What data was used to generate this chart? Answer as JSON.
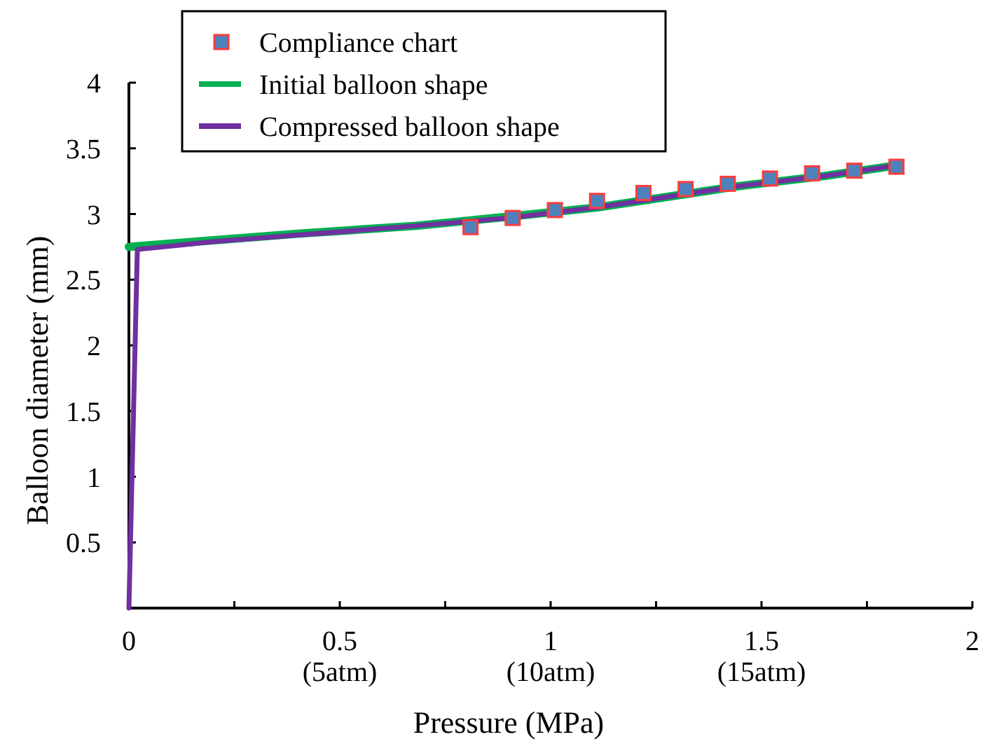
{
  "chart_data": {
    "type": "line",
    "xlabel": "Pressure (MPa)",
    "ylabel": "Balloon diameter (mm)",
    "xlim": [
      0,
      2
    ],
    "ylim": [
      0,
      4
    ],
    "xticks": [
      {
        "value": 0,
        "label": "0"
      },
      {
        "value": 0.25,
        "label": null
      },
      {
        "value": 0.5,
        "label": "0.5\n(5atm)"
      },
      {
        "value": 0.75,
        "label": null
      },
      {
        "value": 1,
        "label": "1\n(10atm)"
      },
      {
        "value": 1.25,
        "label": null
      },
      {
        "value": 1.5,
        "label": "1.5\n(15atm)"
      },
      {
        "value": 1.75,
        "label": null
      },
      {
        "value": 2,
        "label": "2"
      }
    ],
    "yticks": [
      0.5,
      1,
      1.5,
      2,
      2.5,
      3,
      3.5,
      4
    ],
    "grid": false,
    "legend": "top left",
    "series": [
      {
        "name": "Compliance chart",
        "type": "scatter",
        "marker": "square",
        "color": "#4f81bd",
        "x": [
          0.81,
          0.91,
          1.01,
          1.11,
          1.22,
          1.32,
          1.42,
          1.52,
          1.62,
          1.72,
          1.82
        ],
        "values": [
          2.9,
          2.97,
          3.03,
          3.1,
          3.16,
          3.19,
          3.23,
          3.27,
          3.31,
          3.33,
          3.36
        ]
      },
      {
        "name": "Initial balloon shape",
        "color": "#00b050",
        "x": [
          0,
          0.2,
          0.4,
          0.68,
          0.9,
          1.11,
          1.44,
          1.65,
          1.82
        ],
        "values": [
          2.75,
          2.8,
          2.85,
          2.91,
          2.98,
          3.05,
          3.21,
          3.29,
          3.37
        ]
      },
      {
        "name": "Compressed balloon shape",
        "color": "#7030a0",
        "x": [
          0,
          0.02,
          0.2,
          0.4,
          0.68,
          0.9,
          1.11,
          1.44,
          1.65,
          1.82
        ],
        "values": [
          0,
          2.73,
          2.79,
          2.84,
          2.91,
          2.97,
          3.05,
          3.21,
          3.29,
          3.37
        ]
      }
    ]
  }
}
